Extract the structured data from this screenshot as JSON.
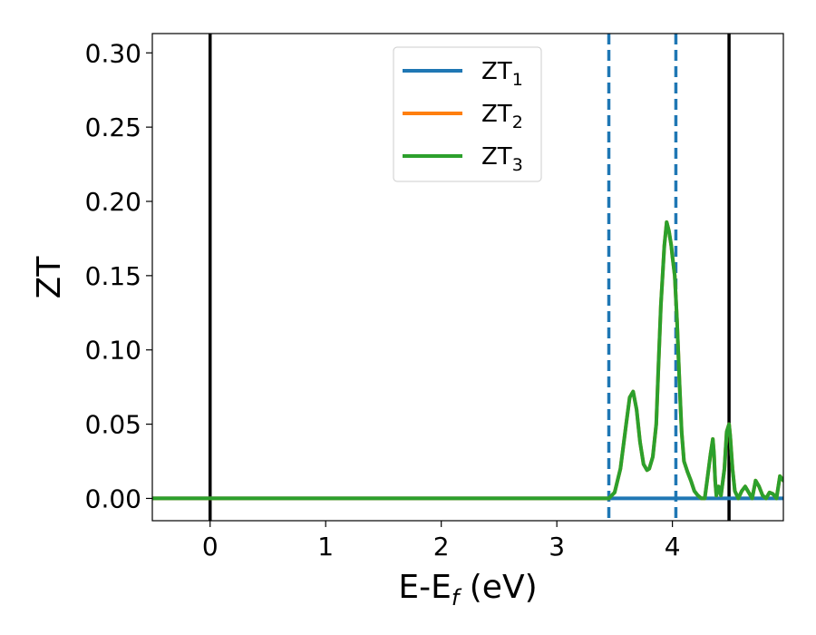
{
  "chart_data": {
    "type": "line",
    "xlabel": "E-E",
    "xlabel_sub": "f",
    "xlabel_unit": " (eV)",
    "ylabel": "ZT",
    "xlim": [
      -0.5,
      4.96
    ],
    "ylim": [
      -0.015,
      0.313
    ],
    "xticks": [
      0,
      1,
      2,
      3,
      4
    ],
    "xtick_labels": [
      "0",
      "1",
      "2",
      "3",
      "4"
    ],
    "yticks": [
      0.0,
      0.05,
      0.1,
      0.15,
      0.2,
      0.25,
      0.3
    ],
    "ytick_labels": [
      "0.00",
      "0.05",
      "0.10",
      "0.15",
      "0.20",
      "0.25",
      "0.30"
    ],
    "grid": false,
    "legend_position": "top-center",
    "colors": {
      "zt1": "#1f77b4",
      "zt2": "#ff7f0e",
      "zt3": "#2ca02c",
      "vline_solid": "#000000",
      "vline_dashed": "#1f77b4"
    },
    "vlines": [
      {
        "x": 0.0,
        "style": "solid",
        "color": "#000000"
      },
      {
        "x": 4.49,
        "style": "solid",
        "color": "#000000"
      },
      {
        "x": 3.45,
        "style": "dashed",
        "color": "#1f77b4"
      },
      {
        "x": 4.03,
        "style": "dashed",
        "color": "#1f77b4"
      }
    ],
    "series": [
      {
        "name": "ZT",
        "name_sub": "1",
        "color": "#1f77b4",
        "x": [
          -0.5,
          4.96
        ],
        "y": [
          0.0,
          0.0
        ]
      },
      {
        "name": "ZT",
        "name_sub": "2",
        "color": "#ff7f0e",
        "x": [
          -0.5,
          3.45,
          3.5,
          3.55,
          3.6,
          3.63,
          3.66,
          3.69,
          3.72,
          3.75,
          3.78,
          3.8,
          3.83,
          3.86,
          3.88,
          3.9,
          3.93,
          3.95,
          3.97,
          3.99,
          4.0,
          4.02,
          4.04,
          4.06,
          4.08,
          4.1,
          4.13,
          4.16,
          4.19,
          4.22,
          4.25,
          4.28,
          4.3,
          4.33,
          4.35,
          4.36,
          4.37,
          4.38,
          4.4,
          4.42,
          4.45,
          4.47,
          4.49,
          4.5,
          4.52,
          4.54,
          4.57,
          4.6,
          4.63,
          4.66,
          4.69,
          4.72,
          4.75,
          4.78,
          4.81,
          4.84,
          4.87,
          4.9,
          4.93,
          4.96
        ],
        "y": [
          0.0,
          0.0,
          0.004,
          0.02,
          0.05,
          0.068,
          0.072,
          0.06,
          0.038,
          0.023,
          0.019,
          0.02,
          0.028,
          0.05,
          0.09,
          0.13,
          0.17,
          0.186,
          0.18,
          0.17,
          0.163,
          0.15,
          0.12,
          0.08,
          0.045,
          0.025,
          0.018,
          0.012,
          0.005,
          0.002,
          0.0,
          0.0,
          0.012,
          0.03,
          0.04,
          0.03,
          0.012,
          0.002,
          0.008,
          0.002,
          0.02,
          0.045,
          0.05,
          0.042,
          0.02,
          0.005,
          0.0,
          0.005,
          0.008,
          0.004,
          0.0,
          0.012,
          0.008,
          0.002,
          0.0,
          0.004,
          0.003,
          0.0,
          0.015,
          0.012
        ]
      },
      {
        "name": "ZT",
        "name_sub": "3",
        "color": "#2ca02c",
        "x": [
          -0.5,
          3.45,
          3.5,
          3.55,
          3.6,
          3.63,
          3.66,
          3.69,
          3.72,
          3.75,
          3.78,
          3.8,
          3.83,
          3.86,
          3.88,
          3.9,
          3.93,
          3.95,
          3.97,
          3.99,
          4.0,
          4.02,
          4.04,
          4.06,
          4.08,
          4.1,
          4.13,
          4.16,
          4.19,
          4.22,
          4.25,
          4.28,
          4.3,
          4.33,
          4.35,
          4.36,
          4.37,
          4.38,
          4.4,
          4.42,
          4.45,
          4.47,
          4.49,
          4.5,
          4.52,
          4.54,
          4.57,
          4.6,
          4.63,
          4.66,
          4.69,
          4.72,
          4.75,
          4.78,
          4.81,
          4.84,
          4.87,
          4.9,
          4.93,
          4.96
        ],
        "y": [
          0.0,
          0.0,
          0.004,
          0.02,
          0.05,
          0.068,
          0.072,
          0.06,
          0.038,
          0.023,
          0.019,
          0.02,
          0.028,
          0.05,
          0.09,
          0.13,
          0.17,
          0.186,
          0.18,
          0.17,
          0.163,
          0.15,
          0.12,
          0.08,
          0.045,
          0.025,
          0.018,
          0.012,
          0.005,
          0.002,
          0.0,
          0.0,
          0.012,
          0.03,
          0.04,
          0.03,
          0.012,
          0.002,
          0.008,
          0.002,
          0.02,
          0.045,
          0.05,
          0.042,
          0.02,
          0.005,
          0.0,
          0.005,
          0.008,
          0.004,
          0.0,
          0.012,
          0.008,
          0.002,
          0.0,
          0.004,
          0.003,
          0.0,
          0.015,
          0.012
        ]
      }
    ]
  }
}
